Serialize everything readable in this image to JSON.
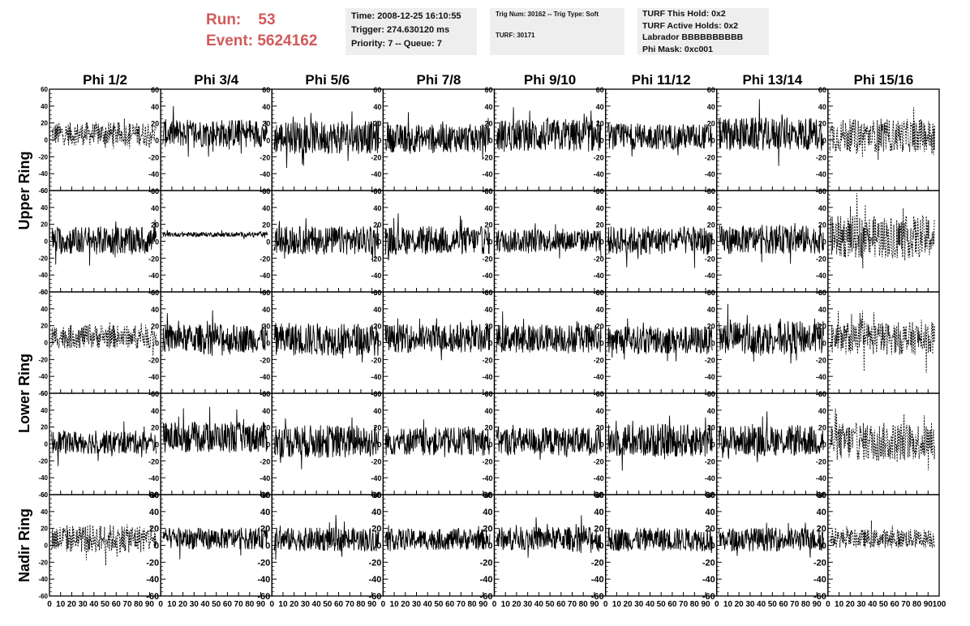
{
  "header": {
    "run_label": "Run:",
    "run_value": "53",
    "event_label": "Event:",
    "event_value": "5624162"
  },
  "info_box_1": {
    "time": "Time: 2008-12-25 16:10:55",
    "trigger": "Trigger: 274.630120 ms",
    "priority": "Priority: 7 -- Queue: 7"
  },
  "info_box_2": {
    "trig": "Trig Num: 30162 -- Trig Type: Soft",
    "turf": "TURF: 30171"
  },
  "info_box_3": {
    "this_hold": "TURF This Hold: 0x2",
    "active_holds": "TURF Active Holds: 0x2",
    "labrador": "Labrador BBBBBBBBBB",
    "phi_mask": "Phi Mask: 0xc001"
  },
  "chart_data": {
    "type": "line",
    "columns": [
      "Phi 1/2",
      "Phi 3/4",
      "Phi 5/6",
      "Phi 7/8",
      "Phi 9/10",
      "Phi 11/12",
      "Phi 13/14",
      "Phi 15/16"
    ],
    "row_groups": [
      {
        "label": "Upper Ring",
        "rows": [
          0,
          1
        ]
      },
      {
        "label": "Lower Ring",
        "rows": [
          2,
          3
        ]
      },
      {
        "label": "Nadir Ring",
        "rows": [
          4
        ]
      }
    ],
    "xlim": [
      0,
      100
    ],
    "ylim": [
      -60,
      60
    ],
    "x_ticks": [
      0,
      10,
      20,
      30,
      40,
      50,
      60,
      70,
      80,
      90,
      100
    ],
    "y_ticks": [
      -60,
      -40,
      -20,
      0,
      20,
      40,
      60
    ],
    "x_tick_labels_per_panel": [
      "0",
      "10",
      "20",
      "30",
      "40",
      "50",
      "60",
      "70",
      "80",
      "90",
      "100"
    ],
    "waveform_samples": 260,
    "series_style": {
      "line_color": "#000000",
      "dashed_panels": "Phi 15/16 column all rows; Phi 1/2 column rows 1, 3, 5"
    },
    "panel_amplitudes": [
      [
        10,
        12,
        14,
        12,
        14,
        11,
        14,
        14
      ],
      [
        12,
        2,
        12,
        12,
        10,
        12,
        12,
        18
      ],
      [
        10,
        12,
        14,
        12,
        12,
        12,
        14,
        14
      ],
      [
        10,
        13,
        14,
        12,
        12,
        14,
        13,
        16
      ],
      [
        12,
        9,
        10,
        9,
        10,
        10,
        10,
        8
      ]
    ],
    "panel_offsets": [
      [
        7,
        8,
        3,
        2,
        5,
        4,
        7,
        5
      ],
      [
        1,
        8,
        1,
        1,
        1,
        1,
        2,
        5
      ],
      [
        7,
        5,
        4,
        5,
        5,
        3,
        6,
        5
      ],
      [
        2,
        8,
        3,
        3,
        3,
        4,
        4,
        3
      ],
      [
        8,
        8,
        7,
        7,
        8,
        7,
        7,
        8
      ]
    ]
  }
}
